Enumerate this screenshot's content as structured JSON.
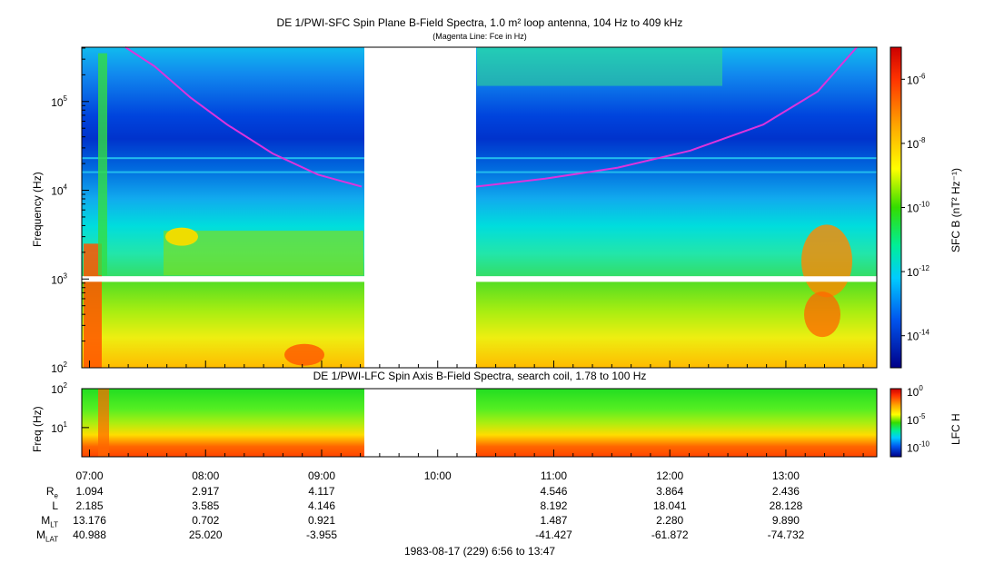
{
  "chart_data": [
    {
      "type": "heatmap",
      "title": "DE 1/PWI-SFC  Spin Plane B-Field Spectra, 1.0 m² loop antenna, 104 Hz to 409 kHz",
      "subtitle": "(Magenta Line: Fce in Hz)",
      "ylabel": "Frequency (Hz)",
      "yscale": "log",
      "ylim": [
        100,
        409000
      ],
      "y_ticks": [
        "10^2",
        "10^3",
        "10^4",
        "10^5"
      ],
      "colorbar_label": "SFC B (nT² Hz⁻¹)",
      "colorbar_scale": "log",
      "colorbar_range": [
        "1e-15",
        "1e-5"
      ],
      "colorbar_ticks": [
        "10^-6",
        "10^-8",
        "10^-10",
        "10^-12",
        "10^-14"
      ],
      "data_gap": [
        "09:24",
        "10:20"
      ],
      "annotations": [
        "Fce magenta line"
      ]
    },
    {
      "type": "heatmap",
      "title": "DE 1/PWI-LFC  Spin Axis B-Field Spectra, search coil, 1.78 to 100 Hz",
      "ylabel": "Freq (Hz)",
      "yscale": "log",
      "ylim": [
        1.78,
        100
      ],
      "y_ticks": [
        "10^1",
        "10^2"
      ],
      "colorbar_label": "LFC H",
      "colorbar_scale": "log",
      "colorbar_ticks": [
        "10^0",
        "10^-5",
        "10^-10"
      ],
      "data_gap": [
        "09:24",
        "10:20"
      ]
    }
  ],
  "x_axis": {
    "times": [
      "07:00",
      "08:00",
      "09:00",
      "10:00",
      "11:00",
      "12:00",
      "13:00"
    ],
    "range": [
      "06:56",
      "13:47"
    ],
    "caption": "1983-08-17 (229) 6:56 to 13:47"
  },
  "ephemeris": {
    "labels": [
      "R",
      "L",
      "M",
      "M"
    ],
    "label_subs": [
      "e",
      "",
      "LT",
      "LAT"
    ],
    "rows": [
      [
        "1.094",
        "2.917",
        "4.117",
        "",
        "4.546",
        "3.864",
        "2.436"
      ],
      [
        "2.185",
        "3.585",
        "4.146",
        "",
        "8.192",
        "18.041",
        "28.128"
      ],
      [
        "13.176",
        "0.702",
        "0.921",
        "",
        "1.487",
        "2.280",
        "9.890"
      ],
      [
        "40.988",
        "25.020",
        "-3.955",
        "",
        "-41.427",
        "-61.872",
        "-74.732"
      ]
    ]
  },
  "colors": {
    "fce_line": "#dd33dd",
    "gap": "#ffffff"
  }
}
